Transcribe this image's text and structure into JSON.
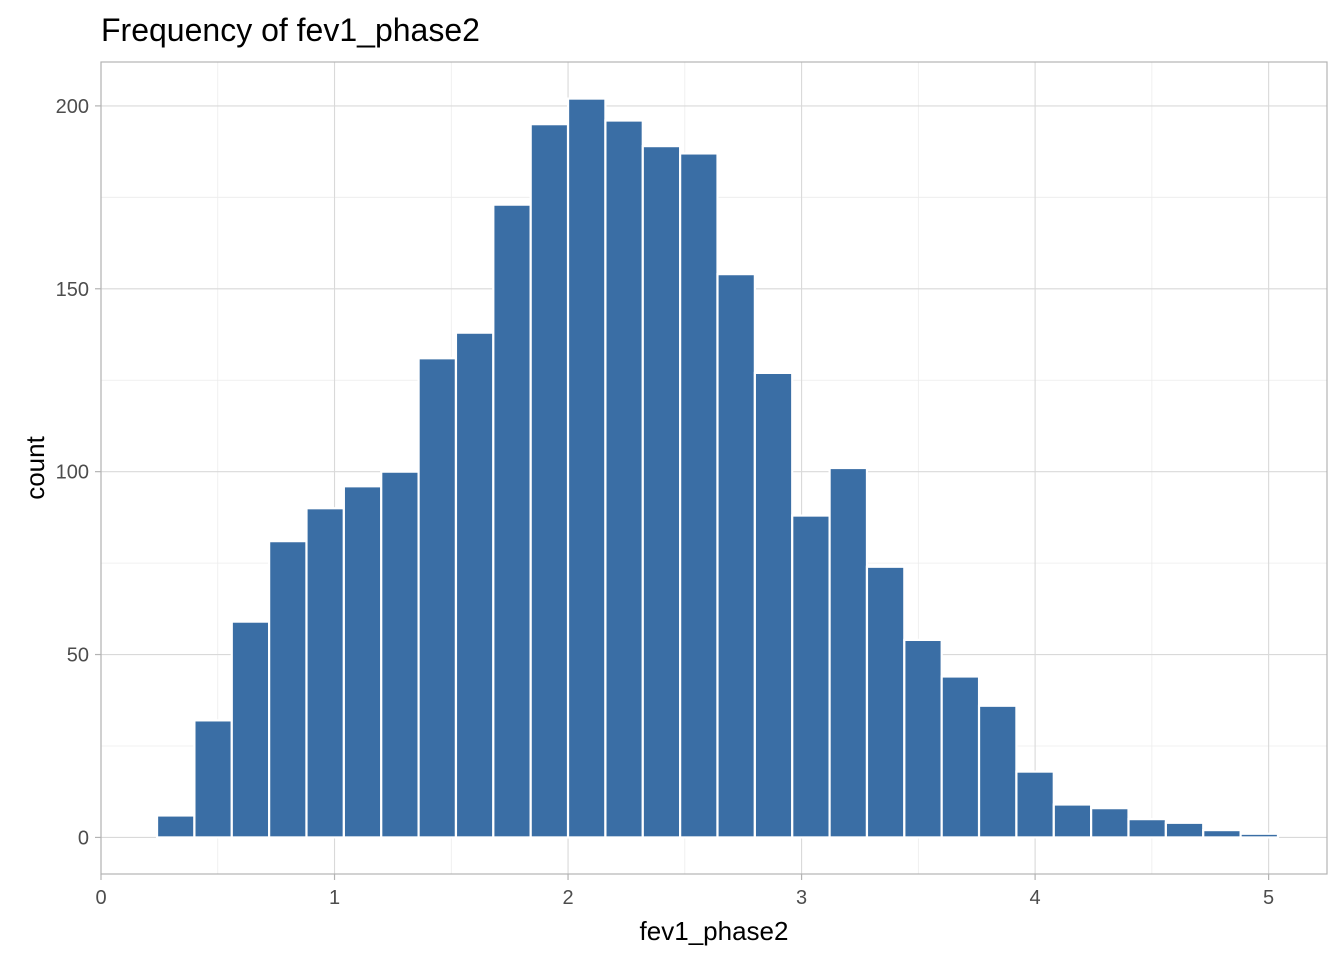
{
  "chart_data": {
    "type": "bar",
    "title": "Frequency of fev1_phase2",
    "xlabel": "fev1_phase2",
    "ylabel": "count",
    "bar_color": "#3A6EA5",
    "background": "#FFFFFF",
    "grid": true,
    "legend": "none",
    "xlim": [
      0,
      5.25
    ],
    "ylim": [
      -10,
      212
    ],
    "x_ticks": [
      0,
      1,
      2,
      3,
      4,
      5
    ],
    "y_ticks": [
      0,
      50,
      100,
      150,
      200
    ],
    "x_tick_labels": [
      "0",
      "1",
      "2",
      "3",
      "4",
      "5"
    ],
    "y_tick_labels": [
      "0",
      "50",
      "100",
      "150",
      "200"
    ],
    "bin_width": 0.16,
    "bins": [
      {
        "x": 0.32,
        "count": 6
      },
      {
        "x": 0.48,
        "count": 32
      },
      {
        "x": 0.64,
        "count": 59
      },
      {
        "x": 0.8,
        "count": 81
      },
      {
        "x": 0.96,
        "count": 90
      },
      {
        "x": 1.12,
        "count": 96
      },
      {
        "x": 1.28,
        "count": 100
      },
      {
        "x": 1.44,
        "count": 131
      },
      {
        "x": 1.6,
        "count": 138
      },
      {
        "x": 1.76,
        "count": 173
      },
      {
        "x": 1.92,
        "count": 195
      },
      {
        "x": 2.08,
        "count": 202
      },
      {
        "x": 2.24,
        "count": 196
      },
      {
        "x": 2.4,
        "count": 189
      },
      {
        "x": 2.56,
        "count": 187
      },
      {
        "x": 2.72,
        "count": 154
      },
      {
        "x": 2.88,
        "count": 127
      },
      {
        "x": 3.04,
        "count": 88
      },
      {
        "x": 3.2,
        "count": 101
      },
      {
        "x": 3.36,
        "count": 74
      },
      {
        "x": 3.52,
        "count": 54
      },
      {
        "x": 3.68,
        "count": 44
      },
      {
        "x": 3.84,
        "count": 36
      },
      {
        "x": 4.0,
        "count": 18
      },
      {
        "x": 4.16,
        "count": 9
      },
      {
        "x": 4.32,
        "count": 8
      },
      {
        "x": 4.48,
        "count": 5
      },
      {
        "x": 4.64,
        "count": 4
      },
      {
        "x": 4.8,
        "count": 2
      },
      {
        "x": 4.96,
        "count": 1
      }
    ]
  }
}
